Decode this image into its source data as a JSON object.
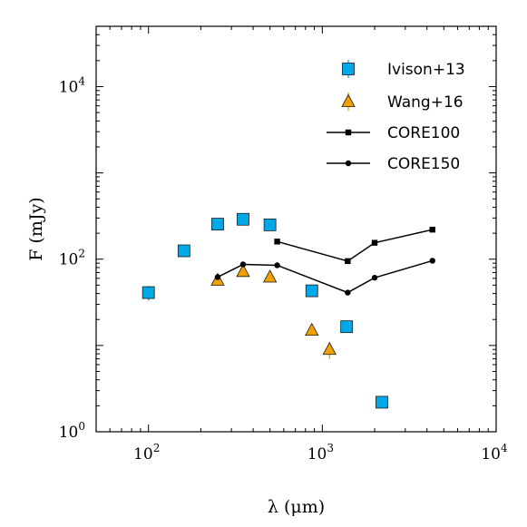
{
  "chart_data": {
    "type": "scatter",
    "xscale": "log",
    "yscale": "log",
    "xlim": [
      50,
      10000
    ],
    "ylim": [
      1,
      50000
    ],
    "xlabel": "λ (μm)",
    "ylabel": "F (mJy)",
    "xticks": [
      100,
      1000,
      10000
    ],
    "yticks": [
      1,
      100,
      10000
    ],
    "xtick_labels": [
      {
        "base": "10",
        "exp": "2"
      },
      {
        "base": "10",
        "exp": "3"
      },
      {
        "base": "10",
        "exp": "4"
      }
    ],
    "ytick_labels": [
      {
        "base": "10",
        "exp": "0"
      },
      {
        "base": "10",
        "exp": "2"
      },
      {
        "base": "10",
        "exp": "4"
      }
    ],
    "legend_position": "top-right",
    "series": [
      {
        "name": "Ivison+13",
        "kind": "marker",
        "marker": "square",
        "color": "#00a8e8",
        "errcolor": "#00a8e8",
        "points": [
          {
            "x": 100,
            "y": 41,
            "err": [
              8,
              8
            ]
          },
          {
            "x": 160,
            "y": 125,
            "err": [
              12,
              12
            ]
          },
          {
            "x": 250,
            "y": 255,
            "err": [
              15,
              15
            ]
          },
          {
            "x": 350,
            "y": 290,
            "err": [
              15,
              15
            ]
          },
          {
            "x": 500,
            "y": 250,
            "err": [
              15,
              15
            ]
          },
          {
            "x": 870,
            "y": 43,
            "err": [
              3,
              3
            ]
          },
          {
            "x": 1380,
            "y": 16.5,
            "err": [
              1,
              1
            ]
          },
          {
            "x": 2200,
            "y": 2.2,
            "err": [
              0.2,
              0.2
            ]
          }
        ]
      },
      {
        "name": "Wang+16",
        "kind": "marker",
        "marker": "triangle",
        "color": "#f0a000",
        "errcolor": "#f0a000",
        "points": [
          {
            "x": 250,
            "y": 57,
            "err": [
              6,
              6
            ]
          },
          {
            "x": 350,
            "y": 72,
            "err": [
              8,
              8
            ]
          },
          {
            "x": 500,
            "y": 62,
            "err": [
              8,
              8
            ]
          },
          {
            "x": 870,
            "y": 15,
            "err": [
              2,
              2
            ]
          },
          {
            "x": 1100,
            "y": 9,
            "err": [
              2,
              2
            ]
          }
        ]
      },
      {
        "name": "CORE100",
        "kind": "line",
        "marker": "square-small",
        "color": "#000000",
        "points": [
          {
            "x": 550,
            "y": 160
          },
          {
            "x": 1400,
            "y": 95
          },
          {
            "x": 2000,
            "y": 155
          },
          {
            "x": 4300,
            "y": 220
          }
        ]
      },
      {
        "name": "CORE150",
        "kind": "line",
        "marker": "circle-small",
        "color": "#000000",
        "points": [
          {
            "x": 250,
            "y": 62
          },
          {
            "x": 350,
            "y": 87
          },
          {
            "x": 550,
            "y": 85
          },
          {
            "x": 1400,
            "y": 41
          },
          {
            "x": 2000,
            "y": 61
          },
          {
            "x": 4300,
            "y": 96
          }
        ]
      }
    ]
  }
}
